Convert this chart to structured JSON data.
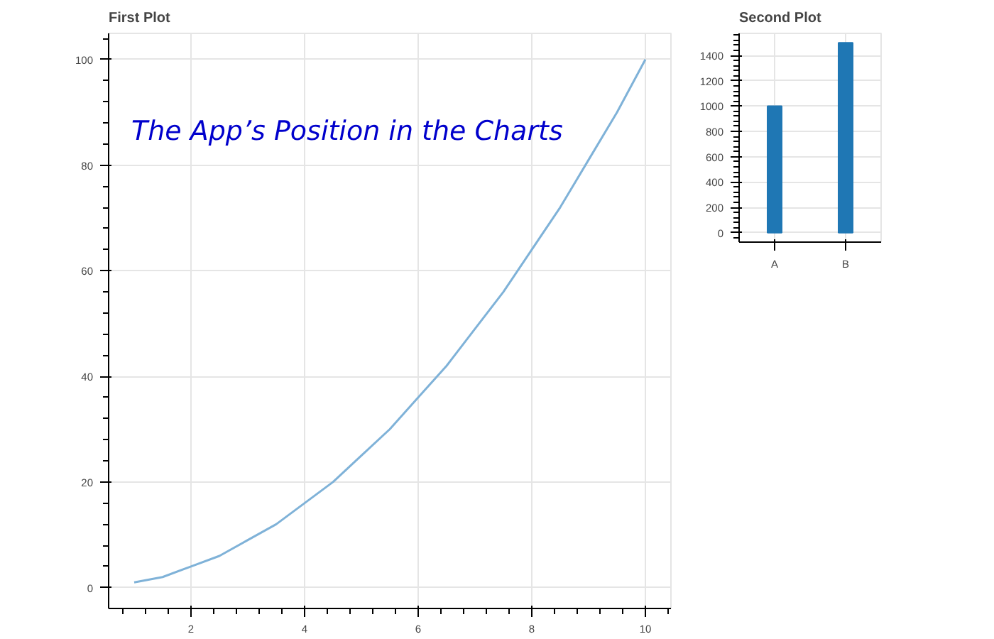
{
  "chart_data": [
    {
      "type": "line",
      "title": "First Plot",
      "x": [
        1,
        1.5,
        2,
        2.5,
        3,
        3.5,
        4,
        4.5,
        5,
        5.5,
        6,
        6.5,
        7,
        7.5,
        8,
        8.5,
        9,
        9.5,
        10
      ],
      "series": [
        {
          "color": "#7fb2d8",
          "values": [
            1,
            2,
            4,
            6,
            9,
            12,
            16,
            20,
            25,
            30,
            36,
            42,
            49,
            56,
            64,
            72,
            81,
            90,
            100
          ]
        }
      ],
      "xlim": [
        0.55,
        10.45
      ],
      "ylim": [
        -3.95,
        104.95
      ],
      "xticks": [
        2,
        4,
        6,
        8,
        10
      ],
      "yticks": [
        0,
        20,
        40,
        60,
        80,
        100
      ],
      "grid": true,
      "annotations": [
        "The App’s Position in the Charts"
      ]
    },
    {
      "type": "bar",
      "title": "Second Plot",
      "categories": [
        "A",
        "B"
      ],
      "values": [
        1000,
        1500
      ],
      "color": "#1f77b4",
      "ylim": [
        -75,
        1575
      ],
      "yticks": [
        0,
        200,
        400,
        600,
        800,
        1000,
        1200,
        1400
      ],
      "grid": true
    }
  ]
}
